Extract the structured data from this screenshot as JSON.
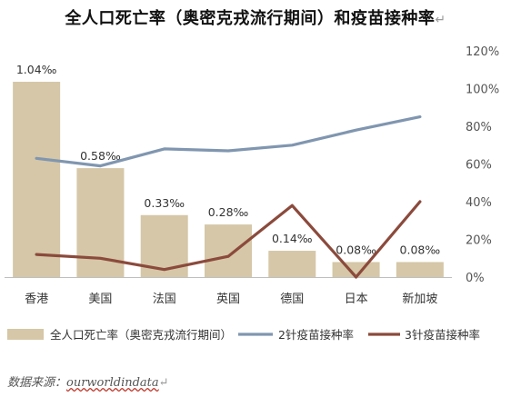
{
  "title": "全人口死亡率（奥密克戎流行期间）和疫苗接种率",
  "title_mark": "↵",
  "source_label": "数据来源：",
  "source_link": "ourworldindata",
  "source_mark": "↵",
  "colors": {
    "bar": "#d5c7a7",
    "dose2": "#8096b0",
    "dose3": "#8b4a3c",
    "axis_text": "#555555"
  },
  "chart_data": {
    "type": "bar",
    "categories": [
      "香港",
      "美国",
      "法国",
      "英国",
      "德国",
      "日本",
      "新加坡"
    ],
    "bar_labels": [
      "1.04‰",
      "0.58‰",
      "0.33‰",
      "0.28‰",
      "0.14‰",
      "0.08‰",
      "0.08‰"
    ],
    "series": [
      {
        "name": "全人口死亡率（奥密克戎流行期间）",
        "kind": "bar",
        "axis": "left",
        "values": [
          1.04,
          0.58,
          0.33,
          0.28,
          0.14,
          0.08,
          0.08
        ]
      },
      {
        "name": "2针疫苗接种率",
        "kind": "line",
        "axis": "right",
        "values": [
          63,
          59,
          68,
          67,
          70,
          78,
          85
        ]
      },
      {
        "name": "3针疫苗接种率",
        "kind": "line",
        "axis": "right",
        "values": [
          12,
          10,
          4,
          11,
          38,
          0,
          40
        ]
      }
    ],
    "y_left_range": [
      0,
      1.04
    ],
    "y_right": {
      "min": 0,
      "max": 120,
      "ticks": [
        "0%",
        "20%",
        "40%",
        "60%",
        "80%",
        "100%",
        "120%"
      ]
    },
    "legend_position": "bottom",
    "grid": false
  }
}
